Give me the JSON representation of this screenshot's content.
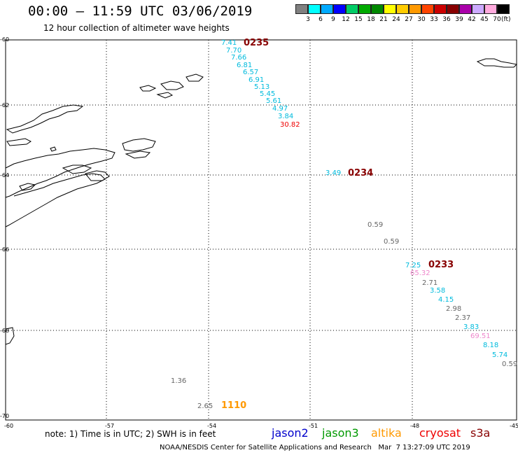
{
  "title": "00:00 – 11:59 UTC 03/06/2019",
  "subtitle": "12 hour collection of altimeter wave heights",
  "legend": {
    "swatches": [
      {
        "color": "#808080"
      },
      {
        "color": "#00ffff"
      },
      {
        "color": "#00aaff"
      },
      {
        "color": "#0000ff"
      },
      {
        "color": "#00cc66"
      },
      {
        "color": "#00aa00"
      },
      {
        "color": "#008800"
      },
      {
        "color": "#ffff00"
      },
      {
        "color": "#ffcc00"
      },
      {
        "color": "#ff9900"
      },
      {
        "color": "#ff4400"
      },
      {
        "color": "#cc0000"
      },
      {
        "color": "#880000"
      },
      {
        "color": "#aa00aa"
      },
      {
        "color": "#ccaaff"
      },
      {
        "color": "#ffaadd"
      },
      {
        "color": "#000000"
      }
    ],
    "ticks": [
      "3",
      "6",
      "9",
      "12",
      "15",
      "18",
      "21",
      "24",
      "27",
      "30",
      "33",
      "36",
      "39",
      "42",
      "45",
      "70"
    ],
    "unit": "(ft)"
  },
  "axes": {
    "lat_labels": [
      "-60",
      "-62",
      "-64",
      "-66",
      "-68",
      "-70"
    ],
    "lon_labels": [
      "-60",
      "-57",
      "-54",
      "-51",
      "-48",
      "-45"
    ]
  },
  "passes": [
    {
      "time": "0235",
      "color": "#880000"
    },
    {
      "time": "0234",
      "color": "#880000"
    },
    {
      "time": "0233",
      "color": "#880000"
    },
    {
      "time": "1110",
      "color": "#ff9900"
    }
  ],
  "values": [
    {
      "text": "7.41",
      "color": "#00bbdd"
    },
    {
      "text": "7.70",
      "color": "#00bbdd"
    },
    {
      "text": "7.66",
      "color": "#00bbdd"
    },
    {
      "text": "6.81",
      "color": "#00bbdd"
    },
    {
      "text": "6.57",
      "color": "#00bbdd"
    },
    {
      "text": "6.91",
      "color": "#00bbdd"
    },
    {
      "text": "5.13",
      "color": "#00bbdd"
    },
    {
      "text": "5.45",
      "color": "#00bbdd"
    },
    {
      "text": "5.61",
      "color": "#00bbdd"
    },
    {
      "text": "4.97",
      "color": "#00bbdd"
    },
    {
      "text": "3.84",
      "color": "#00bbdd"
    },
    {
      "text": "30.82",
      "color": "#ee0000"
    },
    {
      "text": "3.49",
      "color": "#00bbdd"
    },
    {
      "text": "0.59",
      "color": "#666666"
    },
    {
      "text": "0.59",
      "color": "#666666"
    },
    {
      "text": "7.25",
      "color": "#00bbdd"
    },
    {
      "text": "65.32",
      "color": "#ee88cc"
    },
    {
      "text": "2.71",
      "color": "#666666"
    },
    {
      "text": "3.58",
      "color": "#00bbdd"
    },
    {
      "text": "4.15",
      "color": "#00bbdd"
    },
    {
      "text": "2.98",
      "color": "#666666"
    },
    {
      "text": "2.37",
      "color": "#666666"
    },
    {
      "text": "3.83",
      "color": "#00bbdd"
    },
    {
      "text": "69.51",
      "color": "#ee88cc"
    },
    {
      "text": "8.18",
      "color": "#00bbdd"
    },
    {
      "text": "5.74",
      "color": "#00bbdd"
    },
    {
      "text": "0.59",
      "color": "#666666"
    },
    {
      "text": "1.36",
      "color": "#666666"
    },
    {
      "text": "2.65",
      "color": "#666666"
    }
  ],
  "footer": {
    "note": "note: 1) Time is in UTC; 2) SWH is in feet",
    "satellites": [
      {
        "name": "jason2",
        "color": "#0000cc"
      },
      {
        "name": "jason3",
        "color": "#009900"
      },
      {
        "name": "altika",
        "color": "#ff9900"
      },
      {
        "name": "cryosat",
        "color": "#ee0000"
      },
      {
        "name": "s3a",
        "color": "#880000"
      }
    ],
    "credit": "NOAA/NESDIS Center for Satellite Applications and Research   Mar  7 13:27:09 UTC 2019"
  }
}
